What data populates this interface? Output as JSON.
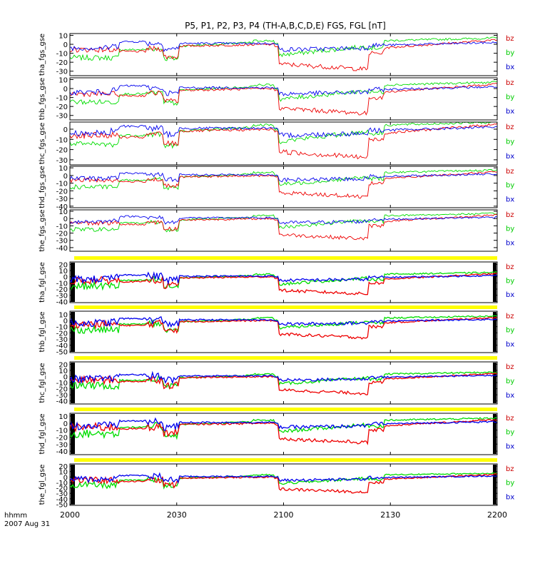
{
  "chart_data": {
    "type": "line",
    "title": "P5, P1, P2, P3, P4 (TH-A,B,C,D,E) FGS, FGL [nT]",
    "x_ticks": [
      "2000",
      "2030",
      "2100",
      "2130",
      "2200"
    ],
    "x_unit_label": "hhmm",
    "date_label": "2007 Aug 31",
    "legend": [
      {
        "name": "bz",
        "color": "#cc0000"
      },
      {
        "name": "by",
        "color": "#00cc00"
      },
      {
        "name": "bx",
        "color": "#0000cc"
      }
    ],
    "panels": [
      {
        "ylabel": "tha_fgs_gse",
        "ylim": [
          -35,
          12
        ],
        "yticks": [
          10,
          0,
          -10,
          -20,
          -30
        ]
      },
      {
        "ylabel": "thb_fgs_gse",
        "ylim": [
          -35,
          12
        ],
        "yticks": [
          10,
          0,
          -10,
          -20,
          -30
        ]
      },
      {
        "ylabel": "thc_fgs_gse",
        "ylim": [
          -35,
          7
        ],
        "yticks": [
          0,
          -10,
          -20,
          -30
        ]
      },
      {
        "ylabel": "thd_fgs_gse",
        "ylim": [
          -42,
          12
        ],
        "yticks": [
          10,
          0,
          -10,
          -20,
          -30,
          -40
        ]
      },
      {
        "ylabel": "the_fgs_gse",
        "ylim": [
          -45,
          12
        ],
        "yticks": [
          10,
          0,
          -10,
          -20,
          -30,
          -40
        ]
      },
      {
        "ylabel": "tha_fgl_gse",
        "ylim": [
          -42,
          24
        ],
        "yticks": [
          20,
          10,
          0,
          -10,
          -20,
          -30,
          -40
        ]
      },
      {
        "ylabel": "thb_fgl_gse",
        "ylim": [
          -52,
          15
        ],
        "yticks": [
          10,
          0,
          -10,
          -20,
          -30,
          -40,
          -50
        ]
      },
      {
        "ylabel": "thc_fgl_gse",
        "ylim": [
          -45,
          24
        ],
        "yticks": [
          20,
          10,
          0,
          -10,
          -20,
          -30,
          -40
        ]
      },
      {
        "ylabel": "thd_fgl_gse",
        "ylim": [
          -45,
          14
        ],
        "yticks": [
          10,
          0,
          -10,
          -20,
          -30,
          -40
        ]
      },
      {
        "ylabel": "the_fgl_gse",
        "ylim": [
          -52,
          24
        ],
        "yticks": [
          20,
          10,
          0,
          -10,
          -20,
          -30,
          -40,
          -50
        ]
      }
    ]
  }
}
